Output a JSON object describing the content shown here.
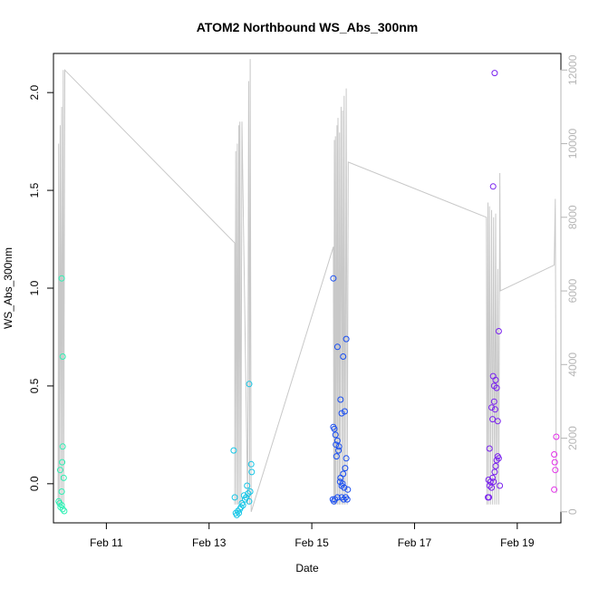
{
  "chart_data": {
    "type": "scatter",
    "title": "ATOM2 Northbound WS_Abs_300nm",
    "xlabel": "Date",
    "ylabel": "WS_Abs_300nm",
    "x_axis": {
      "unit": "days since Feb 10",
      "range": [
        -0.03,
        9.85
      ],
      "ticks": [
        {
          "value": 1,
          "label": "Feb 11"
        },
        {
          "value": 3,
          "label": "Feb 13"
        },
        {
          "value": 5,
          "label": "Feb 15"
        },
        {
          "value": 7,
          "label": "Feb 17"
        },
        {
          "value": 9,
          "label": "Feb 19"
        }
      ]
    },
    "y_left": {
      "range": [
        -0.2,
        2.2
      ],
      "ticks": [
        {
          "value": 0.0,
          "label": "0.0"
        },
        {
          "value": 0.5,
          "label": "0.5"
        },
        {
          "value": 1.0,
          "label": "1.0"
        },
        {
          "value": 1.5,
          "label": "1.5"
        },
        {
          "value": 2.0,
          "label": "2.0"
        }
      ]
    },
    "y_right": {
      "range": [
        -300,
        12450
      ],
      "color": "#b5b5b5",
      "ticks": [
        {
          "value": 0,
          "label": "0"
        },
        {
          "value": 2000,
          "label": "2000"
        },
        {
          "value": 4000,
          "label": "4000"
        },
        {
          "value": 6000,
          "label": "6000"
        },
        {
          "value": 8000,
          "label": "8000"
        },
        {
          "value": 10000,
          "label": "10000"
        },
        {
          "value": 12000,
          "label": "12000"
        }
      ]
    },
    "grid": false,
    "points": [
      {
        "x": 0.07,
        "y": -0.09,
        "color": "#2ef0b4"
      },
      {
        "x": 0.09,
        "y": -0.1,
        "color": "#2ef0b4"
      },
      {
        "x": 0.11,
        "y": -0.12,
        "color": "#2ef0b4"
      },
      {
        "x": 0.13,
        "y": -0.11,
        "color": "#2ef0b4"
      },
      {
        "x": 0.15,
        "y": -0.13,
        "color": "#2ef0b4"
      },
      {
        "x": 0.18,
        "y": -0.14,
        "color": "#2ef0b4"
      },
      {
        "x": 0.1,
        "y": 0.07,
        "color": "#2ef0b4"
      },
      {
        "x": 0.13,
        "y": -0.04,
        "color": "#2ef0b4"
      },
      {
        "x": 0.14,
        "y": 0.11,
        "color": "#2ef0b4"
      },
      {
        "x": 0.15,
        "y": 0.19,
        "color": "#2ef0b4"
      },
      {
        "x": 0.17,
        "y": 0.03,
        "color": "#2ef0b4"
      },
      {
        "x": 0.15,
        "y": 0.65,
        "color": "#2ef0b4"
      },
      {
        "x": 0.13,
        "y": 1.05,
        "color": "#2ef0b4"
      },
      {
        "x": 3.48,
        "y": 0.17,
        "color": "#16c6e6"
      },
      {
        "x": 3.5,
        "y": -0.07,
        "color": "#16c6e6"
      },
      {
        "x": 3.52,
        "y": -0.15,
        "color": "#16c6e6"
      },
      {
        "x": 3.54,
        "y": -0.16,
        "color": "#16c6e6"
      },
      {
        "x": 3.56,
        "y": -0.14,
        "color": "#16c6e6"
      },
      {
        "x": 3.58,
        "y": -0.15,
        "color": "#16c6e6"
      },
      {
        "x": 3.6,
        "y": -0.13,
        "color": "#16c6e6"
      },
      {
        "x": 3.62,
        "y": -0.12,
        "color": "#16c6e6"
      },
      {
        "x": 3.64,
        "y": -0.1,
        "color": "#16c6e6"
      },
      {
        "x": 3.66,
        "y": -0.11,
        "color": "#16c6e6"
      },
      {
        "x": 3.68,
        "y": -0.06,
        "color": "#16c6e6"
      },
      {
        "x": 3.7,
        "y": -0.08,
        "color": "#16c6e6"
      },
      {
        "x": 3.72,
        "y": -0.07,
        "color": "#16c6e6"
      },
      {
        "x": 3.74,
        "y": -0.01,
        "color": "#16c6e6"
      },
      {
        "x": 3.76,
        "y": -0.05,
        "color": "#16c6e6"
      },
      {
        "x": 3.78,
        "y": -0.09,
        "color": "#16c6e6"
      },
      {
        "x": 3.8,
        "y": -0.04,
        "color": "#16c6e6"
      },
      {
        "x": 3.82,
        "y": 0.1,
        "color": "#16c6e6"
      },
      {
        "x": 3.83,
        "y": 0.06,
        "color": "#16c6e6"
      },
      {
        "x": 3.78,
        "y": 0.51,
        "color": "#16c6e6"
      },
      {
        "x": 5.41,
        "y": -0.08,
        "color": "#1a4ef0"
      },
      {
        "x": 5.43,
        "y": -0.09,
        "color": "#1a4ef0"
      },
      {
        "x": 5.45,
        "y": -0.08,
        "color": "#1a4ef0"
      },
      {
        "x": 5.5,
        "y": -0.07,
        "color": "#1a4ef0"
      },
      {
        "x": 5.58,
        "y": -0.07,
        "color": "#1a4ef0"
      },
      {
        "x": 5.62,
        "y": -0.08,
        "color": "#1a4ef0"
      },
      {
        "x": 5.66,
        "y": -0.07,
        "color": "#1a4ef0"
      },
      {
        "x": 5.69,
        "y": -0.08,
        "color": "#1a4ef0"
      },
      {
        "x": 5.42,
        "y": 0.29,
        "color": "#1a4ef0"
      },
      {
        "x": 5.44,
        "y": 0.28,
        "color": "#1a4ef0"
      },
      {
        "x": 5.46,
        "y": 0.25,
        "color": "#1a4ef0"
      },
      {
        "x": 5.47,
        "y": 0.2,
        "color": "#1a4ef0"
      },
      {
        "x": 5.48,
        "y": 0.14,
        "color": "#1a4ef0"
      },
      {
        "x": 5.5,
        "y": 0.22,
        "color": "#1a4ef0"
      },
      {
        "x": 5.52,
        "y": 0.17,
        "color": "#1a4ef0"
      },
      {
        "x": 5.53,
        "y": 0.19,
        "color": "#1a4ef0"
      },
      {
        "x": 5.55,
        "y": 0.01,
        "color": "#1a4ef0"
      },
      {
        "x": 5.56,
        "y": 0.03,
        "color": "#1a4ef0"
      },
      {
        "x": 5.58,
        "y": -0.01,
        "color": "#1a4ef0"
      },
      {
        "x": 5.6,
        "y": 0.0,
        "color": "#1a4ef0"
      },
      {
        "x": 5.61,
        "y": 0.05,
        "color": "#1a4ef0"
      },
      {
        "x": 5.63,
        "y": -0.02,
        "color": "#1a4ef0"
      },
      {
        "x": 5.65,
        "y": 0.08,
        "color": "#1a4ef0"
      },
      {
        "x": 5.67,
        "y": 0.13,
        "color": "#1a4ef0"
      },
      {
        "x": 5.7,
        "y": -0.03,
        "color": "#1a4ef0"
      },
      {
        "x": 5.56,
        "y": 0.43,
        "color": "#1a4ef0"
      },
      {
        "x": 5.58,
        "y": 0.36,
        "color": "#1a4ef0"
      },
      {
        "x": 5.64,
        "y": 0.37,
        "color": "#1a4ef0"
      },
      {
        "x": 5.5,
        "y": 0.7,
        "color": "#1a4ef0"
      },
      {
        "x": 5.61,
        "y": 0.65,
        "color": "#1a4ef0"
      },
      {
        "x": 5.67,
        "y": 0.74,
        "color": "#1a4ef0"
      },
      {
        "x": 5.42,
        "y": 1.05,
        "color": "#1a4ef0"
      },
      {
        "x": 8.43,
        "y": -0.07,
        "color": "#7a22ee"
      },
      {
        "x": 8.45,
        "y": -0.07,
        "color": "#7a22ee"
      },
      {
        "x": 8.46,
        "y": -0.01,
        "color": "#7a22ee"
      },
      {
        "x": 8.48,
        "y": 0.01,
        "color": "#7a22ee"
      },
      {
        "x": 8.5,
        "y": -0.02,
        "color": "#7a22ee"
      },
      {
        "x": 8.52,
        "y": 0.03,
        "color": "#7a22ee"
      },
      {
        "x": 8.54,
        "y": 0.01,
        "color": "#7a22ee"
      },
      {
        "x": 8.44,
        "y": 0.02,
        "color": "#7a22ee"
      },
      {
        "x": 8.46,
        "y": 0.18,
        "color": "#7a22ee"
      },
      {
        "x": 8.56,
        "y": 0.06,
        "color": "#7a22ee"
      },
      {
        "x": 8.58,
        "y": 0.09,
        "color": "#7a22ee"
      },
      {
        "x": 8.6,
        "y": 0.12,
        "color": "#7a22ee"
      },
      {
        "x": 8.62,
        "y": 0.14,
        "color": "#7a22ee"
      },
      {
        "x": 8.64,
        "y": 0.13,
        "color": "#7a22ee"
      },
      {
        "x": 8.66,
        "y": -0.01,
        "color": "#7a22ee"
      },
      {
        "x": 8.5,
        "y": 0.39,
        "color": "#7a22ee"
      },
      {
        "x": 8.52,
        "y": 0.33,
        "color": "#7a22ee"
      },
      {
        "x": 8.55,
        "y": 0.42,
        "color": "#7a22ee"
      },
      {
        "x": 8.57,
        "y": 0.38,
        "color": "#7a22ee"
      },
      {
        "x": 8.62,
        "y": 0.32,
        "color": "#7a22ee"
      },
      {
        "x": 8.53,
        "y": 0.55,
        "color": "#7a22ee"
      },
      {
        "x": 8.55,
        "y": 0.5,
        "color": "#7a22ee"
      },
      {
        "x": 8.58,
        "y": 0.53,
        "color": "#7a22ee"
      },
      {
        "x": 8.6,
        "y": 0.49,
        "color": "#7a22ee"
      },
      {
        "x": 8.64,
        "y": 0.78,
        "color": "#7a22ee"
      },
      {
        "x": 8.53,
        "y": 1.52,
        "color": "#7a22ee"
      },
      {
        "x": 8.56,
        "y": 2.1,
        "color": "#7a22ee"
      },
      {
        "x": 9.72,
        "y": -0.03,
        "color": "#e22ee8"
      },
      {
        "x": 9.74,
        "y": 0.07,
        "color": "#e22ee8"
      },
      {
        "x": 9.73,
        "y": 0.11,
        "color": "#e22ee8"
      },
      {
        "x": 9.72,
        "y": 0.15,
        "color": "#e22ee8"
      },
      {
        "x": 9.76,
        "y": 0.24,
        "color": "#e22ee8"
      }
    ],
    "line_series": {
      "axis": "right",
      "color": "#c8c8c8",
      "points": [
        {
          "x": 0.06,
          "y": 200
        },
        {
          "x": 0.07,
          "y": 10000
        },
        {
          "x": 0.08,
          "y": 200
        },
        {
          "x": 0.1,
          "y": 10500
        },
        {
          "x": 0.11,
          "y": 200
        },
        {
          "x": 0.13,
          "y": 11000
        },
        {
          "x": 0.14,
          "y": 200
        },
        {
          "x": 0.16,
          "y": 12000
        },
        {
          "x": 0.17,
          "y": 200
        },
        {
          "x": 0.19,
          "y": 12000
        },
        {
          "x": 3.5,
          "y": 7300
        },
        {
          "x": 3.5,
          "y": 200
        },
        {
          "x": 3.52,
          "y": 9800
        },
        {
          "x": 3.53,
          "y": 200
        },
        {
          "x": 3.55,
          "y": 10000
        },
        {
          "x": 3.56,
          "y": 200
        },
        {
          "x": 3.58,
          "y": 10500
        },
        {
          "x": 3.59,
          "y": 200
        },
        {
          "x": 3.6,
          "y": 10600
        },
        {
          "x": 3.62,
          "y": 200
        },
        {
          "x": 3.64,
          "y": 10600
        },
        {
          "x": 3.75,
          "y": 200
        },
        {
          "x": 3.77,
          "y": 11700
        },
        {
          "x": 3.79,
          "y": 200
        },
        {
          "x": 3.8,
          "y": 12300
        },
        {
          "x": 3.82,
          "y": 0
        },
        {
          "x": 5.42,
          "y": 7200
        },
        {
          "x": 5.43,
          "y": 200
        },
        {
          "x": 5.44,
          "y": 10100
        },
        {
          "x": 5.45,
          "y": 200
        },
        {
          "x": 5.46,
          "y": 10200
        },
        {
          "x": 5.47,
          "y": 200
        },
        {
          "x": 5.49,
          "y": 10500
        },
        {
          "x": 5.5,
          "y": 200
        },
        {
          "x": 5.51,
          "y": 10700
        },
        {
          "x": 5.53,
          "y": 200
        },
        {
          "x": 5.54,
          "y": 10300
        },
        {
          "x": 5.55,
          "y": 200
        },
        {
          "x": 5.57,
          "y": 11000
        },
        {
          "x": 5.59,
          "y": 200
        },
        {
          "x": 5.6,
          "y": 10900
        },
        {
          "x": 5.62,
          "y": 200
        },
        {
          "x": 5.63,
          "y": 11300
        },
        {
          "x": 5.65,
          "y": 200
        },
        {
          "x": 5.67,
          "y": 11500
        },
        {
          "x": 5.69,
          "y": 200
        },
        {
          "x": 5.71,
          "y": 9500
        },
        {
          "x": 8.4,
          "y": 8000
        },
        {
          "x": 8.41,
          "y": 200
        },
        {
          "x": 8.43,
          "y": 8400
        },
        {
          "x": 8.44,
          "y": 200
        },
        {
          "x": 8.46,
          "y": 8300
        },
        {
          "x": 8.48,
          "y": 200
        },
        {
          "x": 8.5,
          "y": 8200
        },
        {
          "x": 8.52,
          "y": 200
        },
        {
          "x": 8.54,
          "y": 8000
        },
        {
          "x": 8.56,
          "y": 200
        },
        {
          "x": 8.58,
          "y": 8100
        },
        {
          "x": 8.6,
          "y": 200
        },
        {
          "x": 8.62,
          "y": 6600
        },
        {
          "x": 8.64,
          "y": 200
        },
        {
          "x": 8.66,
          "y": 9200
        },
        {
          "x": 8.67,
          "y": 6000
        },
        {
          "x": 9.72,
          "y": 6700
        },
        {
          "x": 9.74,
          "y": 8500
        },
        {
          "x": 9.76,
          "y": 500
        }
      ]
    }
  }
}
